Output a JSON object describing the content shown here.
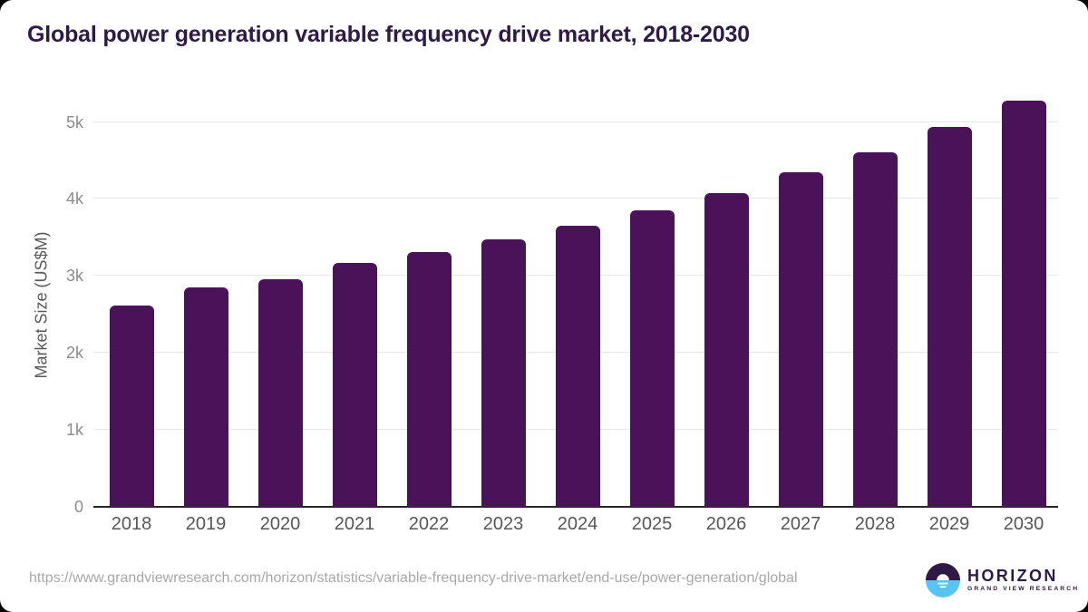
{
  "title": "Global power generation variable frequency drive market, 2018-2030",
  "source_url": "https://www.grandviewresearch.com/horizon/statistics/variable-frequency-drive-market/end-use/power-generation/global",
  "logo": {
    "name": "HORIZON",
    "subtitle": "GRAND VIEW RESEARCH"
  },
  "colors": {
    "bar": "#491259",
    "title_text": "#2e1a47",
    "axis_line": "#262626",
    "gridline": "#e7e7e7",
    "y_tick_text": "#8c8c8c",
    "x_label_text": "#575757",
    "url_text": "#a8a8a8",
    "logo_blue": "#58c4f1"
  },
  "chart_data": {
    "type": "bar",
    "categories": [
      "2018",
      "2019",
      "2020",
      "2021",
      "2022",
      "2023",
      "2024",
      "2025",
      "2026",
      "2027",
      "2028",
      "2029",
      "2030"
    ],
    "values": [
      2615,
      2850,
      2955,
      3165,
      3305,
      3470,
      3655,
      3855,
      4075,
      4345,
      4610,
      4935,
      5275
    ],
    "title": "Global power generation variable frequency drive market, 2018-2030",
    "xlabel": "",
    "ylabel": "Market Size (US$M)",
    "ylim": [
      0,
      5410
    ],
    "yticks": [
      {
        "v": 0,
        "label": "0"
      },
      {
        "v": 1000,
        "label": "1k"
      },
      {
        "v": 2000,
        "label": "2k"
      },
      {
        "v": 3000,
        "label": "3k"
      },
      {
        "v": 4000,
        "label": "4k"
      },
      {
        "v": 5000,
        "label": "5k"
      }
    ],
    "grid": true,
    "legend": false,
    "bar_color": "#491259"
  }
}
